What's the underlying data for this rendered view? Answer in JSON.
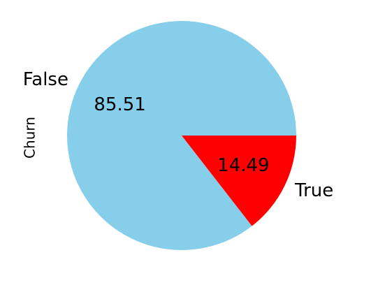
{
  "chart_data": {
    "type": "pie",
    "ylabel": "Churn",
    "slices": [
      {
        "label": "False",
        "value": 85.51,
        "pct_text": "85.51",
        "color": "#87CEEB"
      },
      {
        "label": "True",
        "value": 14.49,
        "pct_text": "14.49",
        "color": "#FF0000"
      }
    ],
    "start_angle_deg": 0,
    "direction": "clockwise-on-screen"
  }
}
